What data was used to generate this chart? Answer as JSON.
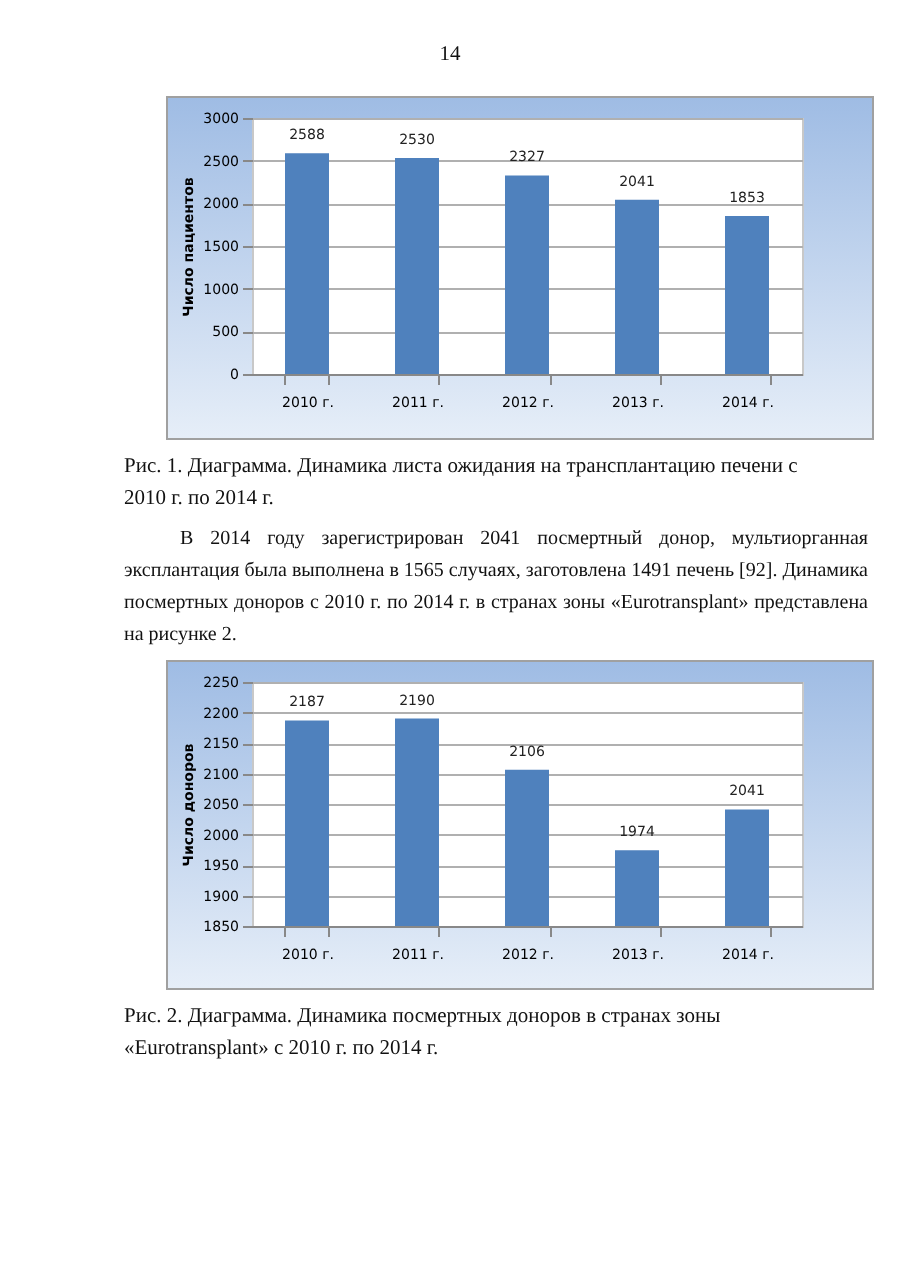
{
  "chart_data": [
    {
      "type": "bar",
      "ylabel": "Число пациентов",
      "categories": [
        "2010 г.",
        "2011 г.",
        "2012 г.",
        "2013 г.",
        "2014 г."
      ],
      "values": [
        2588,
        2530,
        2327,
        2041,
        1853
      ],
      "color": "#4f81bd",
      "ylim": [
        0,
        3000
      ],
      "yticks": [
        0,
        500,
        1000,
        1500,
        2000,
        2500,
        3000
      ],
      "grid": "y",
      "data_labels": true,
      "annotations": [
        "14",
        "Рис. 1. Диаграмма. Динамика  листа ожидания на трансплантацию печени с 2010 г. по 2014 г.",
        "В  2014 году зарегистрирован 2041 посмертный донор, мультиорганная эксплантация была выполнена в 1565 случаях, заготовлена  1491 печень [92]. Динамика посмертных доноров с 2010 г. по 2014 г. в странах зоны «Eurotransplant» представлена на рисунке 2."
      ]
    },
    {
      "type": "bar",
      "ylabel": "Число доноров",
      "categories": [
        "2010 г.",
        "2011 г.",
        "2012 г.",
        "2013 г.",
        "2014 г."
      ],
      "values": [
        2187,
        2190,
        2106,
        1974,
        2041
      ],
      "color": "#4f81bd",
      "ylim": [
        1850,
        2250
      ],
      "yticks": [
        1850,
        1900,
        1950,
        2000,
        2050,
        2100,
        2150,
        2200,
        2250
      ],
      "grid": "y",
      "data_labels": true,
      "annotations": [
        "Рис. 2. Диаграмма. Динамика посмертных доноров в странах зоны «Eurotransplant»  с 2010 г. по 2014 г."
      ]
    }
  ]
}
